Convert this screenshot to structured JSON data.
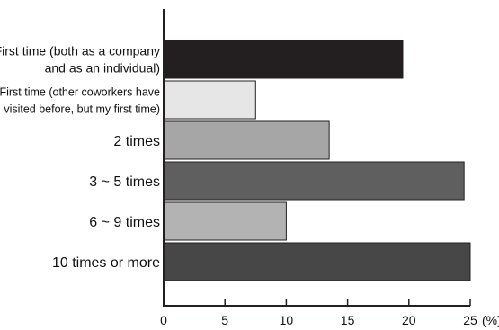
{
  "chart_data": {
    "type": "bar",
    "orientation": "horizontal",
    "categories": [
      [
        "First time (both as a company",
        "and as an individual)"
      ],
      [
        "First time (other coworkers have",
        "visited before, but my first time)"
      ],
      [
        "2 times"
      ],
      [
        "3 ~ 5 times"
      ],
      [
        "6 ~ 9 times"
      ],
      [
        "10 times or more"
      ]
    ],
    "values": [
      19.5,
      7.5,
      13.5,
      24.5,
      10.0,
      25.0
    ],
    "bar_colors": [
      "#231f20",
      "#e6e6e6",
      "#a6a6a6",
      "#5f5f5f",
      "#b3b3b3",
      "#474747"
    ],
    "xlim": [
      0,
      25
    ],
    "xticks": [
      "0",
      "5",
      "10",
      "15",
      "20",
      "25"
    ],
    "x_unit": "(%)",
    "grid": false,
    "legend": "none"
  }
}
